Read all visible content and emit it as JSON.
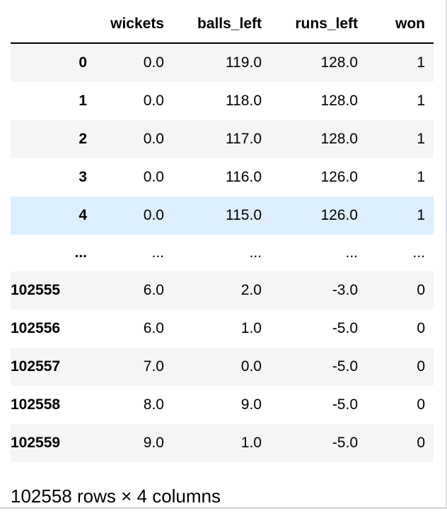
{
  "table": {
    "columns": [
      "",
      "wickets",
      "balls_left",
      "runs_left",
      "won"
    ],
    "rows": [
      {
        "index": "0",
        "wickets": "0.0",
        "balls_left": "119.0",
        "runs_left": "128.0",
        "won": "1"
      },
      {
        "index": "1",
        "wickets": "0.0",
        "balls_left": "118.0",
        "runs_left": "128.0",
        "won": "1"
      },
      {
        "index": "2",
        "wickets": "0.0",
        "balls_left": "117.0",
        "runs_left": "128.0",
        "won": "1"
      },
      {
        "index": "3",
        "wickets": "0.0",
        "balls_left": "116.0",
        "runs_left": "126.0",
        "won": "1"
      },
      {
        "index": "4",
        "wickets": "0.0",
        "balls_left": "115.0",
        "runs_left": "126.0",
        "won": "1"
      },
      {
        "index": "...",
        "wickets": "...",
        "balls_left": "...",
        "runs_left": "...",
        "won": "..."
      },
      {
        "index": "102555",
        "wickets": "6.0",
        "balls_left": "2.0",
        "runs_left": "-3.0",
        "won": "0"
      },
      {
        "index": "102556",
        "wickets": "6.0",
        "balls_left": "1.0",
        "runs_left": "-5.0",
        "won": "0"
      },
      {
        "index": "102557",
        "wickets": "7.0",
        "balls_left": "0.0",
        "runs_left": "-5.0",
        "won": "0"
      },
      {
        "index": "102558",
        "wickets": "8.0",
        "balls_left": "9.0",
        "runs_left": "-5.0",
        "won": "0"
      },
      {
        "index": "102559",
        "wickets": "9.0",
        "balls_left": "1.0",
        "runs_left": "-5.0",
        "won": "0"
      }
    ],
    "highlighted_row_index": "4"
  },
  "footer": {
    "shape_text": "102558 rows × 4 columns"
  },
  "colors": {
    "striped_row": "#f5f5f5",
    "hover_row": "#ddeeff",
    "header_rule": "#000000"
  }
}
